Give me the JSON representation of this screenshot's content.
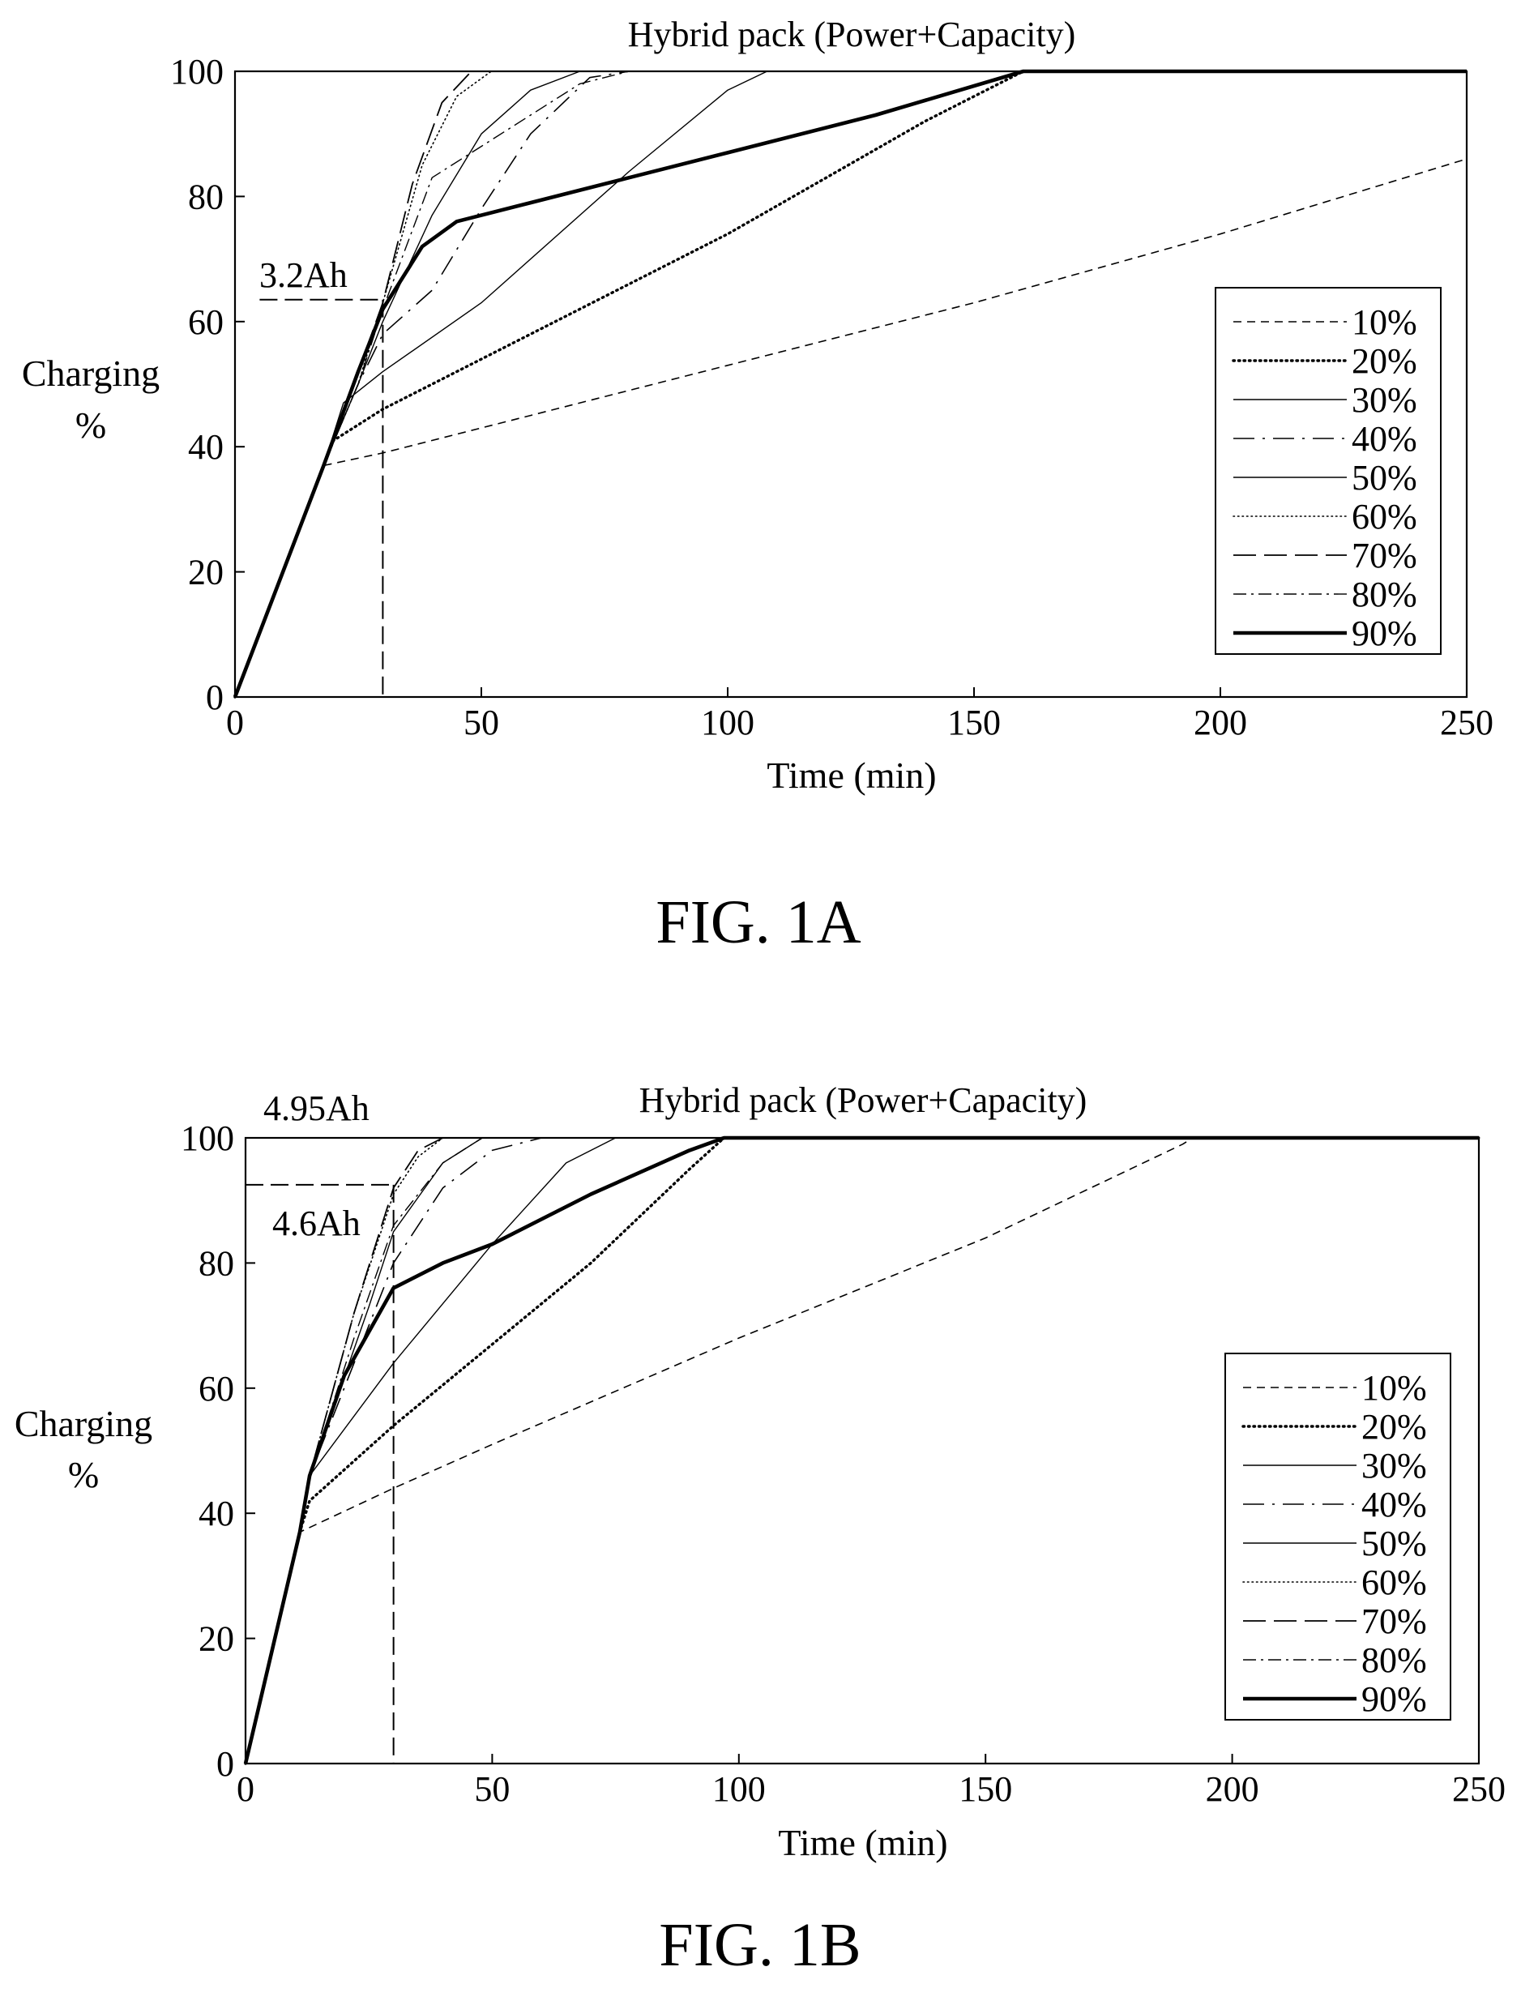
{
  "charts": [
    {
      "id": "fig1a",
      "caption": "FIG. 1A",
      "chart_data": {
        "type": "line",
        "title": "Hybrid pack (Power+Capacity)",
        "xlabel": "Time (min)",
        "ylabel_line1": "Charging",
        "ylabel_line2": "%",
        "xlim": [
          0,
          250
        ],
        "ylim": [
          0,
          100
        ],
        "xticks": [
          "0",
          "50",
          "100",
          "150",
          "200",
          "250"
        ],
        "yticks": [
          "0",
          "20",
          "40",
          "60",
          "80",
          "100"
        ],
        "grid": false,
        "legend_placement": "right",
        "annotations": [
          {
            "text": "3.2Ah",
            "x": 30,
            "y": 63.5
          }
        ],
        "series": [
          {
            "name": "10%",
            "style": "dashed-thin",
            "points": [
              [
                0,
                0
              ],
              [
                18,
                37
              ],
              [
                30,
                39
              ],
              [
                60,
                45
              ],
              [
                100,
                53
              ],
              [
                150,
                63
              ],
              [
                200,
                74
              ],
              [
                250,
                86
              ]
            ]
          },
          {
            "name": "20%",
            "style": "dotted-bold",
            "points": [
              [
                0,
                0
              ],
              [
                18,
                37
              ],
              [
                20,
                41
              ],
              [
                30,
                46
              ],
              [
                50,
                54
              ],
              [
                100,
                74
              ],
              [
                140,
                92
              ],
              [
                160,
                100
              ],
              [
                250,
                100
              ]
            ]
          },
          {
            "name": "30%",
            "style": "solid-thin",
            "points": [
              [
                0,
                0
              ],
              [
                18,
                37
              ],
              [
                22,
                47
              ],
              [
                30,
                52
              ],
              [
                50,
                63
              ],
              [
                80,
                84
              ],
              [
                100,
                97
              ],
              [
                108,
                100
              ],
              [
                250,
                100
              ]
            ]
          },
          {
            "name": "40%",
            "style": "dashdot-long",
            "points": [
              [
                0,
                0
              ],
              [
                18,
                37
              ],
              [
                25,
                50
              ],
              [
                30,
                58
              ],
              [
                40,
                65
              ],
              [
                50,
                78
              ],
              [
                60,
                90
              ],
              [
                72,
                99
              ],
              [
                80,
                100
              ],
              [
                250,
                100
              ]
            ]
          },
          {
            "name": "50%",
            "style": "solid-thin",
            "points": [
              [
                0,
                0
              ],
              [
                18,
                37
              ],
              [
                25,
                50
              ],
              [
                30,
                60
              ],
              [
                40,
                77
              ],
              [
                50,
                90
              ],
              [
                60,
                97
              ],
              [
                70,
                100
              ],
              [
                250,
                100
              ]
            ]
          },
          {
            "name": "60%",
            "style": "dotted-thin",
            "points": [
              [
                0,
                0
              ],
              [
                18,
                37
              ],
              [
                25,
                50
              ],
              [
                30,
                63
              ],
              [
                38,
                85
              ],
              [
                45,
                96
              ],
              [
                52,
                100
              ],
              [
                250,
                100
              ]
            ]
          },
          {
            "name": "70%",
            "style": "dashed-long",
            "points": [
              [
                0,
                0
              ],
              [
                18,
                37
              ],
              [
                25,
                52
              ],
              [
                30,
                63
              ],
              [
                36,
                82
              ],
              [
                42,
                95
              ],
              [
                48,
                100
              ],
              [
                250,
                100
              ]
            ]
          },
          {
            "name": "80%",
            "style": "dashdot-thin",
            "points": [
              [
                0,
                0
              ],
              [
                18,
                37
              ],
              [
                25,
                50
              ],
              [
                30,
                62
              ],
              [
                40,
                83
              ],
              [
                50,
                88
              ],
              [
                60,
                93
              ],
              [
                70,
                98
              ],
              [
                80,
                100
              ],
              [
                250,
                100
              ]
            ]
          },
          {
            "name": "90%",
            "style": "solid-bold",
            "points": [
              [
                0,
                0
              ],
              [
                18,
                37
              ],
              [
                25,
                52
              ],
              [
                30,
                62
              ],
              [
                38,
                72
              ],
              [
                45,
                76
              ],
              [
                60,
                79
              ],
              [
                80,
                83
              ],
              [
                100,
                87
              ],
              [
                130,
                93
              ],
              [
                160,
                100
              ],
              [
                250,
                100
              ]
            ]
          }
        ]
      }
    },
    {
      "id": "fig1b",
      "caption": "FIG. 1B",
      "chart_data": {
        "type": "line",
        "title": "Hybrid pack (Power+Capacity)",
        "xlabel": "Time (min)",
        "ylabel_line1": "Charging",
        "ylabel_line2": "%",
        "xlim": [
          0,
          250
        ],
        "ylim": [
          0,
          100
        ],
        "xticks": [
          "0",
          "50",
          "100",
          "150",
          "200",
          "250"
        ],
        "yticks": [
          "0",
          "20",
          "40",
          "60",
          "80",
          "100"
        ],
        "grid": false,
        "legend_placement": "right",
        "annotations": [
          {
            "text": "4.95Ah",
            "x": 4,
            "y": 102
          },
          {
            "text": "4.6Ah",
            "x": 5,
            "y": 88
          }
        ],
        "series": [
          {
            "name": "10%",
            "style": "dashed-thin",
            "points": [
              [
                0,
                0
              ],
              [
                11,
                37
              ],
              [
                30,
                44
              ],
              [
                50,
                51
              ],
              [
                100,
                68
              ],
              [
                150,
                84
              ],
              [
                190,
                99
              ],
              [
                192,
                100
              ],
              [
                250,
                100
              ]
            ]
          },
          {
            "name": "20%",
            "style": "dotted-bold",
            "points": [
              [
                0,
                0
              ],
              [
                11,
                37
              ],
              [
                13,
                42
              ],
              [
                30,
                54
              ],
              [
                50,
                67
              ],
              [
                70,
                80
              ],
              [
                90,
                95
              ],
              [
                97,
                100
              ],
              [
                250,
                100
              ]
            ]
          },
          {
            "name": "30%",
            "style": "solid-thin",
            "points": [
              [
                0,
                0
              ],
              [
                11,
                37
              ],
              [
                13,
                46
              ],
              [
                30,
                64
              ],
              [
                50,
                83
              ],
              [
                65,
                96
              ],
              [
                75,
                100
              ],
              [
                250,
                100
              ]
            ]
          },
          {
            "name": "40%",
            "style": "dashdot-long",
            "points": [
              [
                0,
                0
              ],
              [
                11,
                37
              ],
              [
                13,
                46
              ],
              [
                25,
                70
              ],
              [
                30,
                80
              ],
              [
                40,
                92
              ],
              [
                50,
                98
              ],
              [
                60,
                100
              ],
              [
                250,
                100
              ]
            ]
          },
          {
            "name": "50%",
            "style": "solid-thin",
            "points": [
              [
                0,
                0
              ],
              [
                11,
                37
              ],
              [
                13,
                46
              ],
              [
                25,
                73
              ],
              [
                30,
                85
              ],
              [
                40,
                96
              ],
              [
                48,
                100
              ],
              [
                250,
                100
              ]
            ]
          },
          {
            "name": "60%",
            "style": "dotted-thin",
            "points": [
              [
                0,
                0
              ],
              [
                11,
                37
              ],
              [
                13,
                46
              ],
              [
                22,
                72
              ],
              [
                30,
                91
              ],
              [
                35,
                97
              ],
              [
                40,
                100
              ],
              [
                250,
                100
              ]
            ]
          },
          {
            "name": "70%",
            "style": "dashed-long",
            "points": [
              [
                0,
                0
              ],
              [
                11,
                37
              ],
              [
                13,
                46
              ],
              [
                22,
                72
              ],
              [
                30,
                92
              ],
              [
                35,
                98
              ],
              [
                40,
                100
              ],
              [
                250,
                100
              ]
            ]
          },
          {
            "name": "80%",
            "style": "dashdot-thin",
            "points": [
              [
                0,
                0
              ],
              [
                11,
                37
              ],
              [
                13,
                46
              ],
              [
                22,
                68
              ],
              [
                30,
                86
              ],
              [
                40,
                96
              ],
              [
                48,
                100
              ],
              [
                250,
                100
              ]
            ]
          },
          {
            "name": "90%",
            "style": "solid-bold",
            "points": [
              [
                0,
                0
              ],
              [
                11,
                37
              ],
              [
                13,
                46
              ],
              [
                20,
                62
              ],
              [
                30,
                76
              ],
              [
                40,
                80
              ],
              [
                50,
                83
              ],
              [
                70,
                91
              ],
              [
                90,
                98
              ],
              [
                97,
                100
              ],
              [
                250,
                100
              ]
            ]
          }
        ]
      }
    }
  ]
}
